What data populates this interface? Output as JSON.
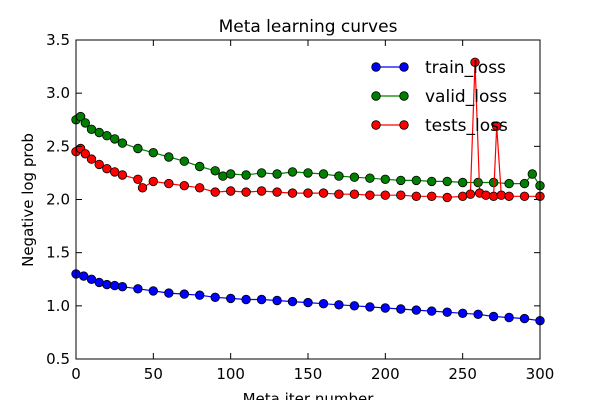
{
  "chart_data": {
    "type": "line",
    "title": "Meta learning curves",
    "xlabel": "Meta iter number",
    "ylabel": "Negative log prob",
    "xlim": [
      0,
      300
    ],
    "ylim": [
      0.5,
      3.5
    ],
    "xticks": [
      "0",
      "50",
      "100",
      "150",
      "200",
      "250",
      "300"
    ],
    "yticks": [
      "0.5",
      "1.0",
      "1.5",
      "2.0",
      "2.5",
      "3.0",
      "3.5"
    ],
    "grid": false,
    "legend_position": "top-right",
    "series": [
      {
        "name": "train_loss",
        "color": "#0000ff",
        "x": [
          0,
          5,
          10,
          15,
          20,
          25,
          30,
          40,
          50,
          60,
          70,
          80,
          90,
          100,
          110,
          120,
          130,
          140,
          150,
          160,
          170,
          180,
          190,
          200,
          210,
          220,
          230,
          240,
          250,
          260,
          270,
          280,
          290,
          300
        ],
        "y": [
          1.3,
          1.28,
          1.25,
          1.22,
          1.2,
          1.19,
          1.18,
          1.16,
          1.14,
          1.12,
          1.11,
          1.1,
          1.08,
          1.07,
          1.06,
          1.06,
          1.05,
          1.04,
          1.03,
          1.02,
          1.01,
          1.0,
          0.99,
          0.98,
          0.97,
          0.96,
          0.95,
          0.94,
          0.93,
          0.92,
          0.9,
          0.89,
          0.88,
          0.86
        ]
      },
      {
        "name": "valid_loss",
        "color": "#008000",
        "x": [
          0,
          3,
          6,
          10,
          15,
          20,
          25,
          30,
          40,
          50,
          60,
          70,
          80,
          90,
          95,
          100,
          110,
          120,
          130,
          140,
          150,
          160,
          170,
          180,
          190,
          200,
          210,
          220,
          230,
          240,
          250,
          260,
          270,
          280,
          290,
          295,
          300
        ],
        "y": [
          2.75,
          2.78,
          2.72,
          2.66,
          2.63,
          2.6,
          2.57,
          2.53,
          2.48,
          2.44,
          2.4,
          2.36,
          2.31,
          2.27,
          2.22,
          2.24,
          2.23,
          2.25,
          2.24,
          2.26,
          2.25,
          2.24,
          2.22,
          2.21,
          2.2,
          2.19,
          2.18,
          2.18,
          2.17,
          2.17,
          2.16,
          2.16,
          2.16,
          2.15,
          2.15,
          2.24,
          2.13
        ]
      },
      {
        "name": "tests_loss",
        "color": "#ff0000",
        "x": [
          0,
          3,
          6,
          10,
          15,
          20,
          25,
          30,
          40,
          43,
          50,
          60,
          70,
          80,
          90,
          100,
          110,
          120,
          130,
          140,
          150,
          160,
          170,
          180,
          190,
          200,
          210,
          220,
          230,
          240,
          250,
          255,
          258,
          261,
          265,
          270,
          272,
          275,
          280,
          290,
          300
        ],
        "y": [
          2.45,
          2.48,
          2.43,
          2.38,
          2.33,
          2.29,
          2.26,
          2.23,
          2.19,
          2.11,
          2.17,
          2.15,
          2.13,
          2.11,
          2.07,
          2.08,
          2.07,
          2.08,
          2.07,
          2.06,
          2.06,
          2.06,
          2.05,
          2.05,
          2.04,
          2.04,
          2.04,
          2.03,
          2.03,
          2.02,
          2.03,
          2.05,
          3.29,
          2.06,
          2.04,
          2.03,
          2.69,
          2.04,
          2.03,
          2.03,
          2.03
        ]
      }
    ]
  }
}
